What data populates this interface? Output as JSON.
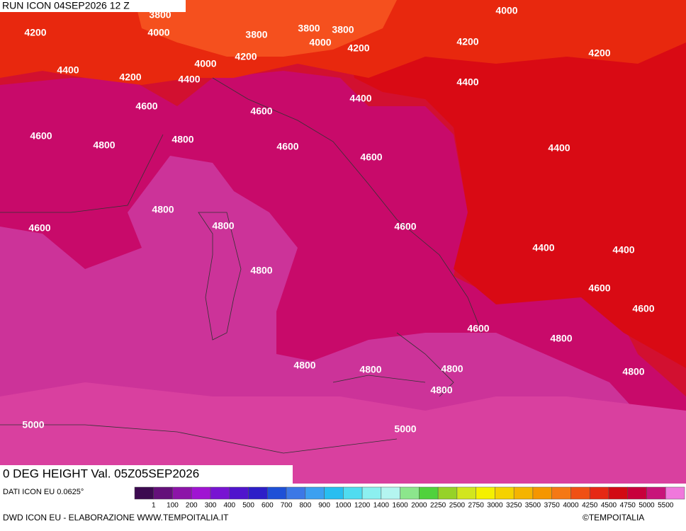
{
  "header": {
    "run": "RUN ICON 04SEP2026 12 Z",
    "title": "0 DEG HEIGHT Val. 05Z05SEP2026"
  },
  "map": {
    "contour_labels": [
      3800,
      3800,
      3800,
      3800,
      4000,
      4200,
      4000,
      4000,
      4200,
      4200,
      4200,
      4400,
      4200,
      4000,
      4200,
      4400,
      4400,
      4400,
      4600,
      4600,
      4600,
      4800,
      4800,
      4600,
      4600,
      4400,
      4800,
      4600,
      4800,
      4600,
      4400,
      4400,
      4800,
      4600,
      4600,
      4600,
      4800,
      4800,
      4800,
      4800,
      4800,
      4800,
      5000,
      5000
    ]
  },
  "legend": {
    "ticks": [
      1,
      100,
      200,
      300,
      400,
      500,
      600,
      700,
      800,
      900,
      1000,
      1200,
      1400,
      1600,
      2000,
      2250,
      2500,
      2750,
      3000,
      3250,
      3500,
      3750,
      4000,
      4250,
      4500,
      4750,
      5000,
      5500
    ],
    "colors": [
      "#3c0a50",
      "#64107a",
      "#8c14a8",
      "#a014d2",
      "#7814d2",
      "#5014cd",
      "#2d1ec8",
      "#1e50d7",
      "#3c78e6",
      "#3ca0f0",
      "#28bef0",
      "#50dcf0",
      "#8cf0f0",
      "#b4f5f0",
      "#8ce68c",
      "#50d23c",
      "#96d228",
      "#d2e61e",
      "#f5f000",
      "#f5d200",
      "#f5b400",
      "#f59600",
      "#f57814",
      "#f05014",
      "#e62814",
      "#d20a14",
      "#c8003c",
      "#c8147a",
      "#f078dc"
    ]
  },
  "footer": {
    "source": "DATI ICON EU 0.0625°",
    "credits": "DWD ICON EU - ELABORAZIONE WWW.TEMPOITALIA.IT",
    "copyright": "©TEMPOITALIA"
  }
}
